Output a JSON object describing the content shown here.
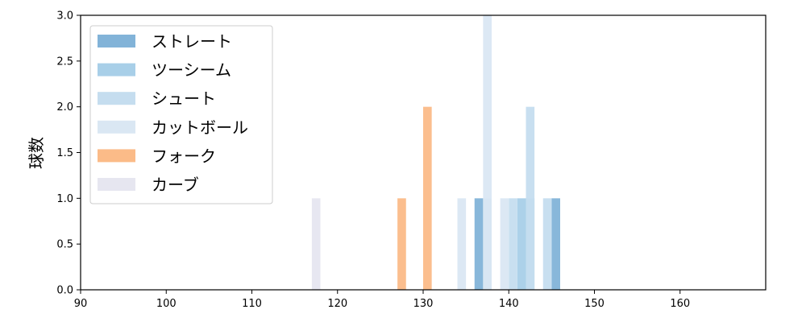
{
  "chart_data": {
    "type": "bar",
    "title": "",
    "xlabel": "",
    "ylabel": "球数",
    "xlim": [
      90,
      170
    ],
    "ylim": [
      0,
      3.0
    ],
    "xticks": [
      90,
      100,
      110,
      120,
      130,
      140,
      150,
      160
    ],
    "yticks": [
      0.0,
      0.5,
      1.0,
      1.5,
      2.0,
      2.5,
      3.0
    ],
    "ytick_labels": [
      "0.0",
      "0.5",
      "1.0",
      "1.5",
      "2.0",
      "2.5",
      "3.0"
    ],
    "bin_width": 1,
    "grid": false,
    "legend_position": "top-left",
    "series": [
      {
        "name": "ストレート",
        "color": "#82b3d8",
        "bars": [
          {
            "x": 136.5,
            "y": 1
          },
          {
            "x": 145.5,
            "y": 1
          }
        ]
      },
      {
        "name": "ツーシーム",
        "color": "#a8cfe8",
        "bars": [
          {
            "x": 137.5,
            "y": 1
          },
          {
            "x": 141.5,
            "y": 1
          },
          {
            "x": 142.5,
            "y": 1
          }
        ]
      },
      {
        "name": "シュート",
        "color": "#c5ddef",
        "bars": [
          {
            "x": 140.5,
            "y": 1
          },
          {
            "x": 142.5,
            "y": 2
          },
          {
            "x": 144.5,
            "y": 1
          }
        ]
      },
      {
        "name": "カットボール",
        "color": "#dae7f3",
        "bars": [
          {
            "x": 134.5,
            "y": 1
          },
          {
            "x": 137.5,
            "y": 3
          },
          {
            "x": 139.5,
            "y": 1
          }
        ]
      },
      {
        "name": "フォーク",
        "color": "#fbbb88",
        "bars": [
          {
            "x": 127.5,
            "y": 1
          },
          {
            "x": 130.5,
            "y": 2
          }
        ]
      },
      {
        "name": "カーブ",
        "color": "#e6e6f0",
        "bars": [
          {
            "x": 117.5,
            "y": 1
          }
        ]
      }
    ]
  }
}
